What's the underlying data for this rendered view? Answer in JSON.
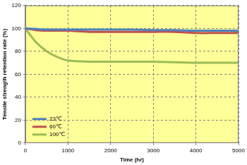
{
  "chart_data": {
    "type": "line",
    "x_label": "Time (hr)",
    "y_label": "Tensile strength retention rate (%)",
    "x": [
      0,
      250,
      500,
      750,
      1000,
      1500,
      2000,
      2500,
      3000,
      3500,
      4000,
      4500,
      5000
    ],
    "series": [
      {
        "name": "23℃",
        "color": "#4f81bd",
        "values": [
          100,
          99.5,
          99,
          99,
          99,
          99,
          99,
          99,
          98.5,
          98.5,
          98,
          98,
          98
        ]
      },
      {
        "name": "60℃",
        "color": "#c0504d",
        "values": [
          100,
          98.5,
          98,
          98,
          98,
          97,
          97,
          97,
          97,
          97,
          96,
          96,
          96
        ]
      },
      {
        "name": "100℃",
        "color": "#9bbb59",
        "values": [
          100,
          88,
          80,
          75,
          72,
          71,
          71,
          71,
          71,
          70.5,
          70,
          70,
          70
        ]
      }
    ],
    "xlim": [
      0,
      5000
    ],
    "xticks": [
      0,
      1000,
      2000,
      3000,
      4000,
      5000
    ],
    "ylim": [
      0,
      120
    ],
    "yticks": [
      0,
      20,
      40,
      60,
      80,
      100,
      120
    ],
    "grid": true,
    "legend": "lower left",
    "marker": "none",
    "line_style": "solid"
  }
}
